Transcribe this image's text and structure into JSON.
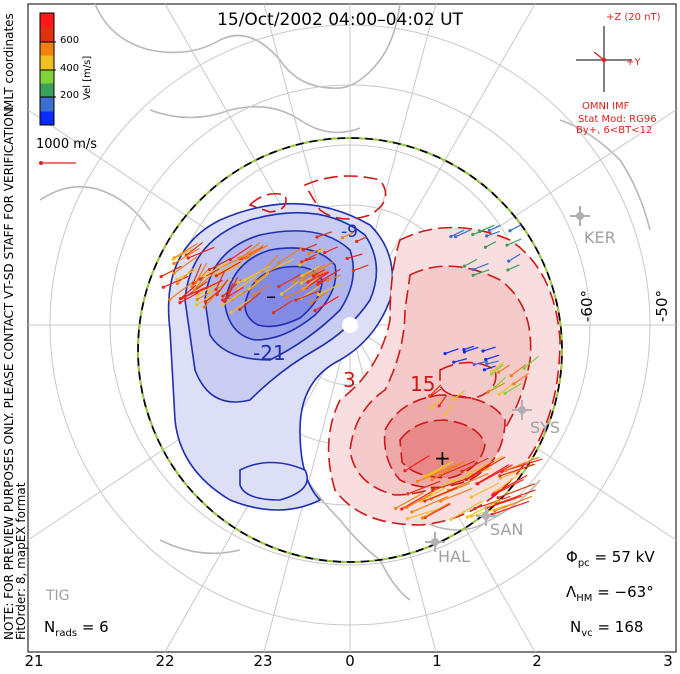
{
  "header": {
    "title": "15/Oct/2002 04:00–04:02 UT"
  },
  "legend": {
    "title": "Vel [m/s]",
    "ticks": [
      "600",
      "400",
      "200"
    ],
    "scale_colors": [
      "#0a2cff",
      "#3a6fd0",
      "#3aa05a",
      "#7fd23a",
      "#f0c020",
      "#f08010",
      "#e03010",
      "#ff1a1a"
    ],
    "reference_vector_label": "1000 m/s"
  },
  "side_text": {
    "coordinates": "MLT coordinates",
    "note_line1": "NOTE: FOR PREVIEW PURPOSES ONLY. PLEASE CONTACT VT-SD STAFF FOR VERIFICATION.",
    "note_line2": "FitOrder: 8, mapEX format"
  },
  "imf": {
    "z_label": "+Z (20 nT)",
    "y_label": "+Y",
    "source": "OMNI IMF",
    "model_line1": "Stat Mod: RG96",
    "model_line2": "By+, 6<BT<12"
  },
  "latitude_labels": [
    "-60°",
    "-50°"
  ],
  "stations": [
    "KER",
    "SYS",
    "SAN",
    "HAL",
    "TIG"
  ],
  "contours": {
    "negative_labels": [
      "-9",
      "-21"
    ],
    "positive_labels": [
      "3",
      "15"
    ],
    "min_marker": "–",
    "max_marker": "+"
  },
  "stats": {
    "phi_symbol": "Φ",
    "phi_sub": "pc",
    "phi_value": "= 57 kV",
    "lambda_symbol": "Λ",
    "lambda_sub": "HM",
    "lambda_value": "= −63°",
    "nvc_symbol": "N",
    "nvc_sub": "vc",
    "nvc_value": "= 168",
    "nrads_symbol": "N",
    "nrads_sub": "rads",
    "nrads_value": "= 6"
  },
  "mlt_axis": [
    "21",
    "22",
    "23",
    "0",
    "1",
    "2",
    "3"
  ],
  "colors": {
    "negative_contour": "#1f2fb0",
    "positive_contour": "#d01818",
    "negative_fill": "#5a66e0",
    "positive_fill": "#e85050",
    "grid": "#c8c8c8",
    "boundary_dash": "#9bd23a"
  }
}
